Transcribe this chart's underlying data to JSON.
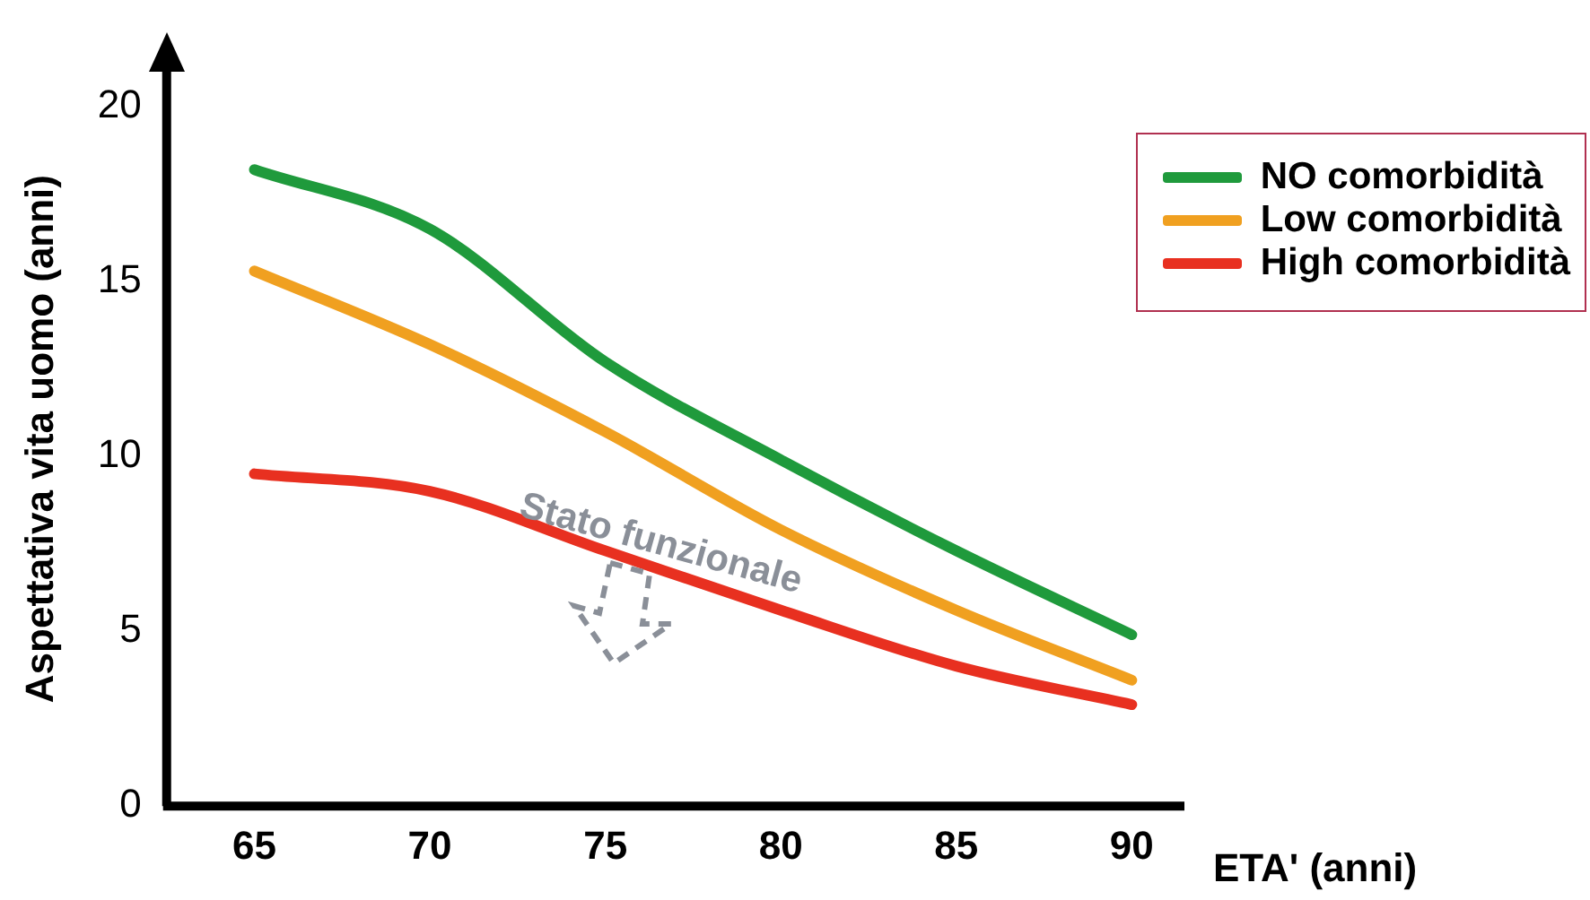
{
  "chart_data": {
    "type": "line",
    "xlabel": "ETA' (anni)",
    "ylabel": "Aspettativa vita uomo (anni)",
    "x": [
      65,
      70,
      75,
      80,
      85,
      90
    ],
    "xlim": [
      62.5,
      91.5
    ],
    "xticks": [
      65,
      70,
      75,
      80,
      85,
      90
    ],
    "ylim": [
      0,
      21
    ],
    "yticks": [
      0,
      5,
      10,
      15,
      20
    ],
    "grid": false,
    "legend": "top right",
    "marker": "none",
    "line_style": "solid",
    "annotations": [
      "Stato funzionale"
    ],
    "series": [
      {
        "name": "NO comorbidità",
        "color": "#1f9a3c",
        "values": [
          18.2,
          16.5,
          12.7,
          9.9,
          7.3,
          4.9
        ]
      },
      {
        "name": "Low comorbidità",
        "color": "#f0a020",
        "values": [
          15.3,
          13.2,
          10.7,
          7.9,
          5.6,
          3.6
        ]
      },
      {
        "name": "High comorbidità",
        "color": "#e83020",
        "values": [
          9.5,
          9.0,
          7.3,
          5.6,
          4.0,
          2.9
        ]
      }
    ]
  }
}
